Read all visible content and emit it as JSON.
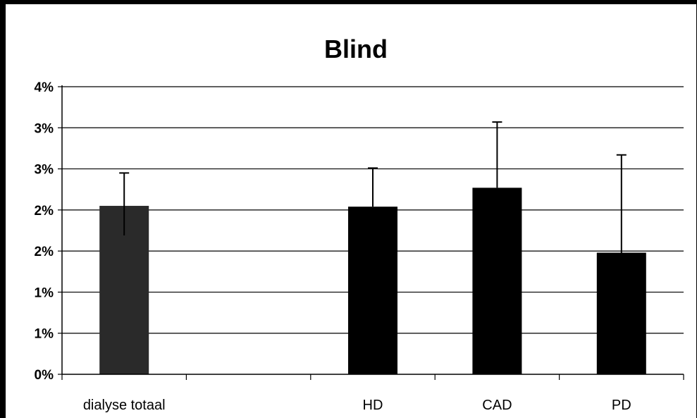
{
  "chart_data": {
    "type": "bar",
    "title": "Blind",
    "xlabel": "",
    "ylabel": "",
    "ylim": [
      0,
      3.5
    ],
    "ytick_values": [
      0,
      0.5,
      1,
      1.5,
      2,
      2.5,
      3,
      3.5
    ],
    "ytick_labels": [
      "0%",
      "1%",
      "1%",
      "2%",
      "2%",
      "3%",
      "3%",
      "4%"
    ],
    "categories": [
      "dialyse totaal",
      "",
      "HD",
      "CAD",
      "PD"
    ],
    "values": [
      2.05,
      null,
      2.04,
      2.27,
      1.48
    ],
    "error_upper": [
      2.45,
      null,
      2.51,
      3.07,
      2.67
    ],
    "error_lower": [
      1.69,
      null,
      null,
      null,
      null
    ],
    "grid": true,
    "legend": "none",
    "colors": {
      "bar_fill": "#000000",
      "first_bar_fill": "#2a2a2a",
      "gridline": "#000000",
      "background": "#ffffff",
      "frame": "#000000"
    }
  }
}
